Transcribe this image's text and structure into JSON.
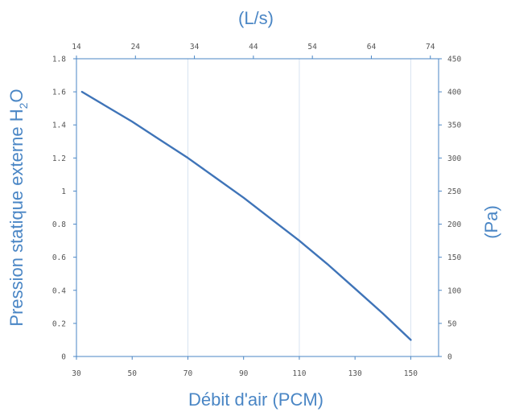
{
  "chart_data": {
    "type": "line",
    "xlabel": "Débit d'air (PCM)",
    "ylabel": "Pression statique externe H2O",
    "ylabel_parts": {
      "before": "Pression statique externe H",
      "sub": "2",
      "after": "O"
    },
    "x2label": "(L/s)",
    "y2label": "(Pa)",
    "xlim": [
      30,
      160
    ],
    "ylim": [
      0,
      1.8
    ],
    "x_ticks": [
      "30",
      "50",
      "70",
      "90",
      "110",
      "130",
      "150"
    ],
    "x_tick_values": [
      30,
      50,
      70,
      90,
      110,
      130,
      150
    ],
    "y_ticks": [
      "0",
      "0.2",
      "0.4",
      "0.6",
      "0.8",
      "1",
      "1.2",
      "1.4",
      "1.6",
      "1.8"
    ],
    "y_tick_values": [
      0,
      0.2,
      0.4,
      0.6,
      0.8,
      1,
      1.2,
      1.4,
      1.6,
      1.8
    ],
    "x2_ticks": [
      "14",
      "24",
      "34",
      "44",
      "54",
      "64",
      "74"
    ],
    "x2_tick_values": [
      14,
      24,
      34,
      44,
      54,
      64,
      74
    ],
    "x2lim": [
      14,
      75.4
    ],
    "y2_ticks": [
      "0",
      "50",
      "100",
      "150",
      "200",
      "250",
      "300",
      "350",
      "400",
      "450"
    ],
    "y2_tick_values": [
      0,
      50,
      100,
      150,
      200,
      250,
      300,
      350,
      400,
      450
    ],
    "y2lim": [
      0,
      450
    ],
    "vertical_gridlines_at_x": [
      70,
      110,
      150
    ],
    "series": [
      {
        "x": [
          32,
          40,
          50,
          60,
          70,
          80,
          90,
          100,
          110,
          120,
          130,
          140,
          150
        ],
        "y": [
          1.6,
          1.52,
          1.42,
          1.31,
          1.2,
          1.08,
          0.96,
          0.83,
          0.7,
          0.56,
          0.41,
          0.26,
          0.1
        ]
      }
    ],
    "colors": {
      "line": "#3f74b8",
      "axis": "#4a86c5",
      "grid": "#d7e3f1",
      "text": "#555555"
    }
  }
}
